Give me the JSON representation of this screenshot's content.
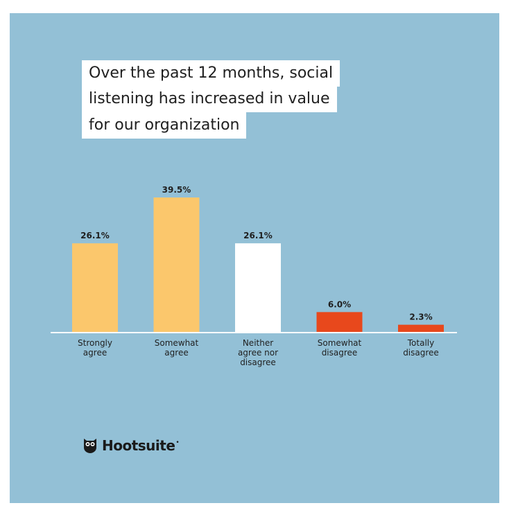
{
  "chart_data": {
    "type": "bar",
    "title": "Over the past 12 months, social listening has increased in value for our organization",
    "title_lines": [
      "Over the past 12 months, social",
      "listening has increased in value",
      "for our organization"
    ],
    "categories": [
      [
        "Strongly",
        "agree"
      ],
      [
        "Somewhat",
        "agree"
      ],
      [
        "Neither",
        "agree nor",
        "disagree"
      ],
      [
        "Somewhat",
        "disagree"
      ],
      [
        "Totally",
        "disagree"
      ]
    ],
    "values": [
      26.1,
      39.5,
      26.1,
      6.0,
      2.3
    ],
    "labels": [
      "26.1%",
      "39.5%",
      "26.1%",
      "6.0%",
      "2.3%"
    ],
    "colors": [
      "#fbc76c",
      "#fbc76c",
      "#ffffff",
      "#e8481c",
      "#e8481c"
    ],
    "xlabel": "",
    "ylabel": "",
    "ylim": [
      0,
      39.5
    ],
    "grid": false
  },
  "brand": {
    "name": "Hootsuite",
    "mark": "•",
    "icon": "owl-icon"
  },
  "colors": {
    "background": "#93c0d6",
    "axis": "#ffffff"
  }
}
